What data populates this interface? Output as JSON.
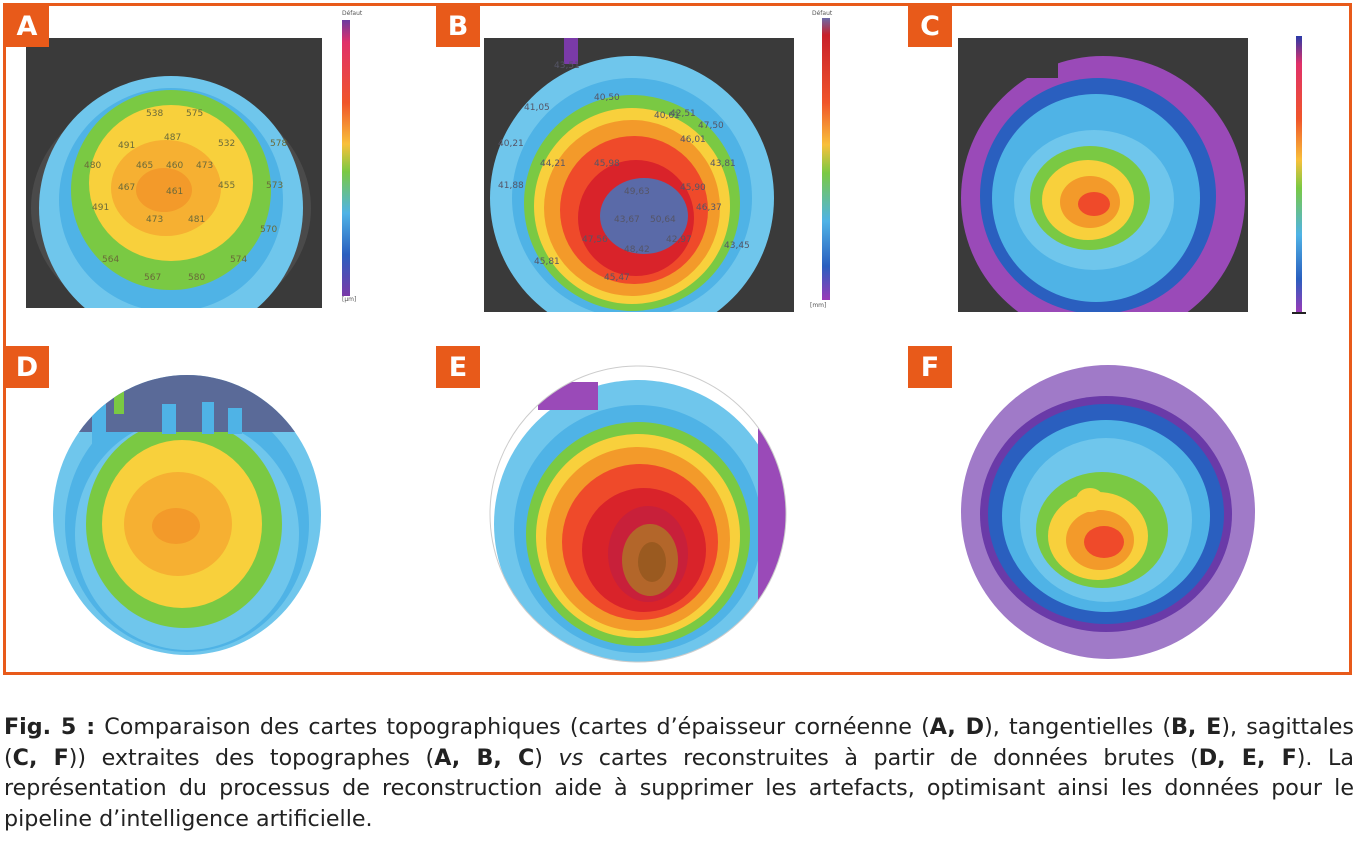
{
  "panels": {
    "A": {
      "label": "A",
      "values": [
        "538",
        "575",
        "487",
        "491",
        "532",
        "480",
        "465",
        "460",
        "473",
        "467",
        "461",
        "455",
        "491",
        "473",
        "481",
        "564",
        "567",
        "580",
        "574",
        "570",
        "578",
        "573"
      ],
      "scale_title": "Défaut",
      "scale_unit": "[µm]"
    },
    "B": {
      "label": "B",
      "values": [
        "43,51",
        "40,50",
        "42,51",
        "41,05",
        "47,50",
        "40,21",
        "44,21",
        "45,98",
        "46,01",
        "43,81",
        "49,63",
        "45,90",
        "43,67",
        "50,64",
        "46,37",
        "47,56",
        "48,42",
        "42,97",
        "45,81",
        "45,47",
        "40,61",
        "41,88",
        "43,45"
      ],
      "scale_title": "Défaut",
      "scale_unit": "[mm]"
    },
    "C": {
      "label": "C"
    },
    "D": {
      "label": "D"
    },
    "E": {
      "label": "E"
    },
    "F": {
      "label": "F"
    }
  },
  "caption": {
    "fig_label": "Fig. 5 :",
    "t1": " Comparaison des cartes topographiques (cartes d’épaisseur cornéenne (",
    "b1": "A, D",
    "t2": "), tangentielles (",
    "b2": "B, E",
    "t3": "), sagittales (",
    "b3": "C, F",
    "t4": ")) extraites des topographes (",
    "b4": "A, B, C",
    "t5": ") ",
    "i1": "vs",
    "t6": " cartes reconstruites à partir de données brutes (",
    "b5": "D, E, F",
    "t7": "). La représentation du processus de reconstruction aide à supprimer les artefacts, optimisant ainsi les données pour le pipeline d’intelligence artificielle."
  },
  "colors": {
    "frame": "#e85a1a",
    "tag": "#e85a1a"
  }
}
